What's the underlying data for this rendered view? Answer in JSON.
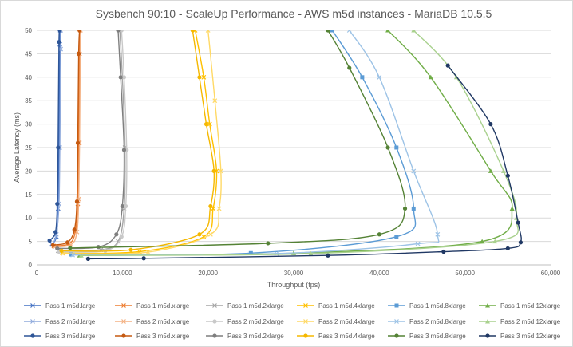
{
  "chart_data": {
    "type": "line",
    "title": "Sysbench 90:10 - ScaleUp Performance - AWS m5d instances - MariaDB 10.5.5",
    "xlabel": "Throughput (tps)",
    "ylabel": "Average Latency (ms)",
    "xlim": [
      0,
      60000
    ],
    "ylim": [
      0,
      50
    ],
    "x_ticks": [
      "0",
      "10,000",
      "20,000",
      "30,000",
      "40,000",
      "50,000",
      "60,000"
    ],
    "y_ticks": [
      "0",
      "5",
      "10",
      "15",
      "20",
      "25",
      "30",
      "35",
      "40",
      "45",
      "50"
    ],
    "grid": "horizontal",
    "legend_position": "bottom",
    "series": [
      {
        "name": "Pass 1 m5d.large",
        "color": "#4472c4",
        "marker": "x",
        "x": [
          1800,
          2300,
          2500,
          2600,
          2700,
          2750
        ],
        "y": [
          4.5,
          6,
          12,
          25,
          47,
          50
        ]
      },
      {
        "name": "Pass 1 m5d.xlarge",
        "color": "#ed7d31",
        "marker": "x",
        "x": [
          2000,
          3800,
          4500,
          4800,
          4900,
          5000,
          5100
        ],
        "y": [
          4,
          4.5,
          7,
          13,
          26,
          45,
          50
        ]
      },
      {
        "name": "Pass 1 m5d.2xlarge",
        "color": "#a5a5a5",
        "marker": "x",
        "x": [
          2500,
          7500,
          9500,
          10200,
          10300,
          10000,
          9700
        ],
        "y": [
          3,
          3.2,
          5,
          12,
          25,
          40,
          50
        ]
      },
      {
        "name": "Pass 1 m5d.4xlarge",
        "color": "#ffc000",
        "marker": "x",
        "x": [
          3000,
          12000,
          19500,
          20600,
          21000,
          20200,
          19500,
          18500
        ],
        "y": [
          2.5,
          2.8,
          6,
          12,
          20,
          30,
          40,
          50
        ]
      },
      {
        "name": "Pass 1 m5d.8xlarge",
        "color": "#5b9bd5",
        "marker": "square",
        "x": [
          4000,
          25000,
          42000,
          44000,
          42000,
          38000,
          34500
        ],
        "y": [
          2.2,
          2.5,
          6,
          12,
          25,
          40,
          50
        ]
      },
      {
        "name": "Pass 1 m5d.12xlarge",
        "color": "#70ad47",
        "marker": "triangle",
        "x": [
          5000,
          30000,
          52000,
          55500,
          53000,
          46000,
          41000
        ],
        "y": [
          2,
          2.5,
          5,
          12,
          20,
          40,
          50
        ]
      },
      {
        "name": "Pass 2 m5d.large",
        "color": "#8faadc",
        "marker": "x",
        "x": [
          1800,
          2300,
          2600,
          2700,
          2800,
          2800
        ],
        "y": [
          4.3,
          6.5,
          13,
          25,
          46,
          50
        ]
      },
      {
        "name": "Pass 2 m5d.xlarge",
        "color": "#f4b183",
        "marker": "x",
        "x": [
          2100,
          4000,
          4700,
          4900,
          5000,
          5100
        ],
        "y": [
          3.8,
          4.3,
          7,
          14,
          26,
          50
        ]
      },
      {
        "name": "Pass 2 m5d.2xlarge",
        "color": "#c9c9c9",
        "marker": "circle",
        "x": [
          2600,
          8000,
          9900,
          10400,
          10500,
          10200,
          9900
        ],
        "y": [
          2.8,
          3,
          6,
          12.5,
          24.5,
          40,
          50
        ]
      },
      {
        "name": "Pass 2 m5d.4xlarge",
        "color": "#ffd966",
        "marker": "x",
        "x": [
          3100,
          13000,
          20300,
          21300,
          21500,
          20800,
          20000
        ],
        "y": [
          2.4,
          2.7,
          6.5,
          12,
          20,
          35,
          50
        ]
      },
      {
        "name": "Pass 2 m5d.8xlarge",
        "color": "#9dc3e6",
        "marker": "x",
        "x": [
          4200,
          28000,
          44500,
          46800,
          44000,
          40000,
          36500
        ],
        "y": [
          2.1,
          2.4,
          4.5,
          6.5,
          20,
          40,
          50
        ]
      },
      {
        "name": "Pass 2 m5d.12xlarge",
        "color": "#a9d18e",
        "marker": "triangle",
        "x": [
          5200,
          32000,
          53500,
          56000,
          54500,
          49000,
          44000
        ],
        "y": [
          2,
          2.4,
          5,
          10,
          20,
          40,
          50
        ]
      },
      {
        "name": "Pass 3 m5d.large",
        "color": "#2e5597",
        "marker": "circle",
        "x": [
          1500,
          2200,
          2400,
          2500,
          2600,
          2700
        ],
        "y": [
          5.2,
          7,
          13,
          25,
          47.5,
          50
        ]
      },
      {
        "name": "Pass 3 m5d.xlarge",
        "color": "#c55a11",
        "marker": "circle",
        "x": [
          1900,
          3600,
          4400,
          4700,
          4800,
          4900,
          5000
        ],
        "y": [
          4.2,
          4.8,
          7.5,
          13.5,
          26,
          45,
          50
        ]
      },
      {
        "name": "Pass 3 m5d.2xlarge",
        "color": "#7f7f7f",
        "marker": "circle",
        "x": [
          2400,
          7200,
          9300,
          10000,
          10200,
          9800,
          9500
        ],
        "y": [
          3.5,
          3.8,
          6.5,
          12.5,
          24.5,
          40,
          50
        ]
      },
      {
        "name": "Pass 3 m5d.4xlarge",
        "color": "#f5b800",
        "marker": "circle",
        "x": [
          2900,
          11000,
          19000,
          20300,
          20700,
          19800,
          19000,
          18200
        ],
        "y": [
          3,
          3.2,
          6.5,
          12.5,
          20,
          30,
          40,
          50
        ]
      },
      {
        "name": "Pass 3 m5d.8xlarge",
        "color": "#548235",
        "marker": "circle",
        "x": [
          3900,
          27000,
          40000,
          43000,
          41000,
          36500,
          34000
        ],
        "y": [
          3.6,
          4.6,
          6.5,
          12,
          25,
          42,
          50
        ]
      },
      {
        "name": "Pass 3 m5d.12xlarge",
        "color": "#203864",
        "marker": "circle",
        "x": [
          6000,
          12500,
          34000,
          47500,
          55000,
          56500,
          56200,
          55000,
          53000,
          48000
        ],
        "y": [
          1.3,
          1.4,
          2.0,
          2.8,
          3.5,
          4.8,
          9,
          19,
          30,
          42.5
        ]
      }
    ]
  }
}
